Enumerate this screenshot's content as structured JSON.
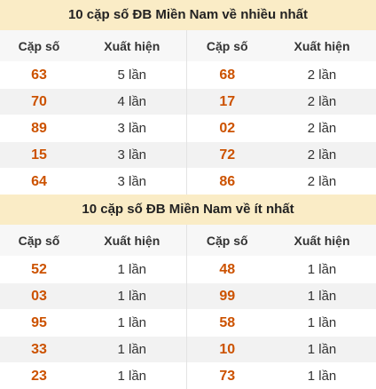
{
  "sections": [
    {
      "title": "10 cặp số ĐB Miền Nam về nhiều nhất",
      "headers": [
        "Cặp số",
        "Xuất hiện",
        "Cặp số",
        "Xuất hiện"
      ],
      "rows": [
        {
          "a": "63",
          "a_count": "5 lần",
          "b": "68",
          "b_count": "2 lần"
        },
        {
          "a": "70",
          "a_count": "4 lần",
          "b": "17",
          "b_count": "2 lần"
        },
        {
          "a": "89",
          "a_count": "3 lần",
          "b": "02",
          "b_count": "2 lần"
        },
        {
          "a": "15",
          "a_count": "3 lần",
          "b": "72",
          "b_count": "2 lần"
        },
        {
          "a": "64",
          "a_count": "3 lần",
          "b": "86",
          "b_count": "2 lần"
        }
      ]
    },
    {
      "title": "10 cặp số ĐB Miền Nam về ít nhất",
      "headers": [
        "Cặp số",
        "Xuất hiện",
        "Cặp số",
        "Xuất hiện"
      ],
      "rows": [
        {
          "a": "52",
          "a_count": "1 lần",
          "b": "48",
          "b_count": "1 lần"
        },
        {
          "a": "03",
          "a_count": "1 lần",
          "b": "99",
          "b_count": "1 lần"
        },
        {
          "a": "95",
          "a_count": "1 lần",
          "b": "58",
          "b_count": "1 lần"
        },
        {
          "a": "33",
          "a_count": "1 lần",
          "b": "10",
          "b_count": "1 lần"
        },
        {
          "a": "23",
          "a_count": "1 lần",
          "b": "73",
          "b_count": "1 lần"
        }
      ]
    }
  ]
}
